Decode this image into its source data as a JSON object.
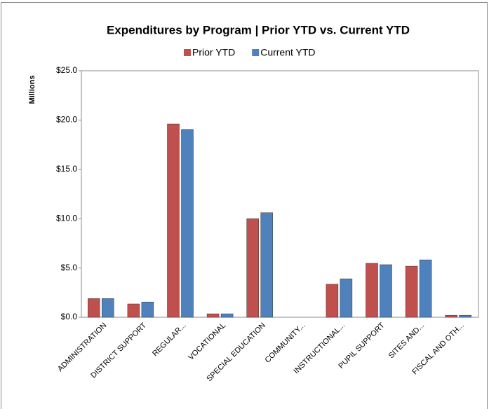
{
  "chart_data": {
    "type": "bar",
    "title": "Expenditures by Program | Prior YTD vs. Current YTD",
    "y_label": "Millions",
    "categories": [
      "ADMINISTRATION",
      "DISTRICT SUPPORT",
      "REGULAR...",
      "VOCATIONAL",
      "SPECIAL EDUCATION",
      "COMMUNITY...",
      "INSTRUCTIONAL...",
      "PUPIL SUPPORT",
      "SITES AND...",
      "FISCAL AND OTH..."
    ],
    "series": [
      {
        "name": "Prior YTD",
        "color": "#c0504d",
        "values": [
          1.9,
          1.35,
          19.6,
          0.35,
          10.0,
          0,
          3.35,
          5.47,
          5.18,
          0.2
        ]
      },
      {
        "name": "Current YTD",
        "color": "#4f81bd",
        "values": [
          1.9,
          1.55,
          19.05,
          0.35,
          10.6,
          0,
          3.9,
          5.33,
          5.82,
          0.2
        ]
      }
    ],
    "ylim": [
      0,
      25
    ],
    "yticks": [
      {
        "value": 0,
        "label": "$0.0"
      },
      {
        "value": 5,
        "label": "$5.0"
      },
      {
        "value": 10,
        "label": "$10.0"
      },
      {
        "value": 15,
        "label": "$15.0"
      },
      {
        "value": 20,
        "label": "$20.0"
      },
      {
        "value": 25,
        "label": "$25.0"
      }
    ],
    "legend": "top"
  }
}
